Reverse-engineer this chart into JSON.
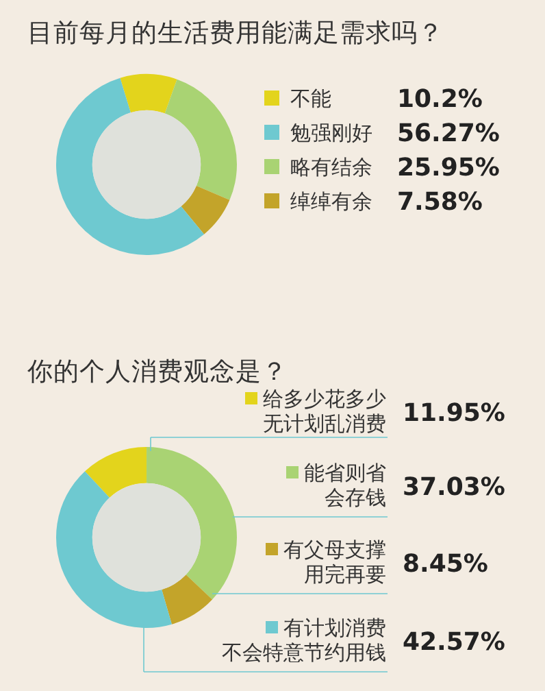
{
  "chart_data": [
    {
      "type": "donut",
      "title": "目前每月的生活费用能满足需求吗？",
      "legend": "right",
      "categories": [
        "不能",
        "勉强刚好",
        "略有结余",
        "绰绰有余"
      ],
      "values": [
        10.2,
        56.27,
        25.95,
        7.58
      ],
      "value_labels": [
        "10.2%",
        "56.27%",
        "25.95%",
        "7.58%"
      ],
      "colors": [
        "#e3d41c",
        "#6ec9d0",
        "#a9d373",
        "#c3a42a"
      ]
    },
    {
      "type": "donut",
      "title": "你的个人消费观念是？",
      "legend": "right",
      "categories": [
        "给多少花多少无计划乱消费",
        "能省则省会存钱",
        "有父母支撑用完再要",
        "有计划消费不会特意节约用钱"
      ],
      "values": [
        11.95,
        37.03,
        8.45,
        42.57
      ],
      "value_labels": [
        "11.95%",
        "37.03%",
        "8.45%",
        "42.57%"
      ],
      "colors": [
        "#e3d41c",
        "#a9d373",
        "#c3a42a",
        "#6ec9d0"
      ]
    }
  ]
}
